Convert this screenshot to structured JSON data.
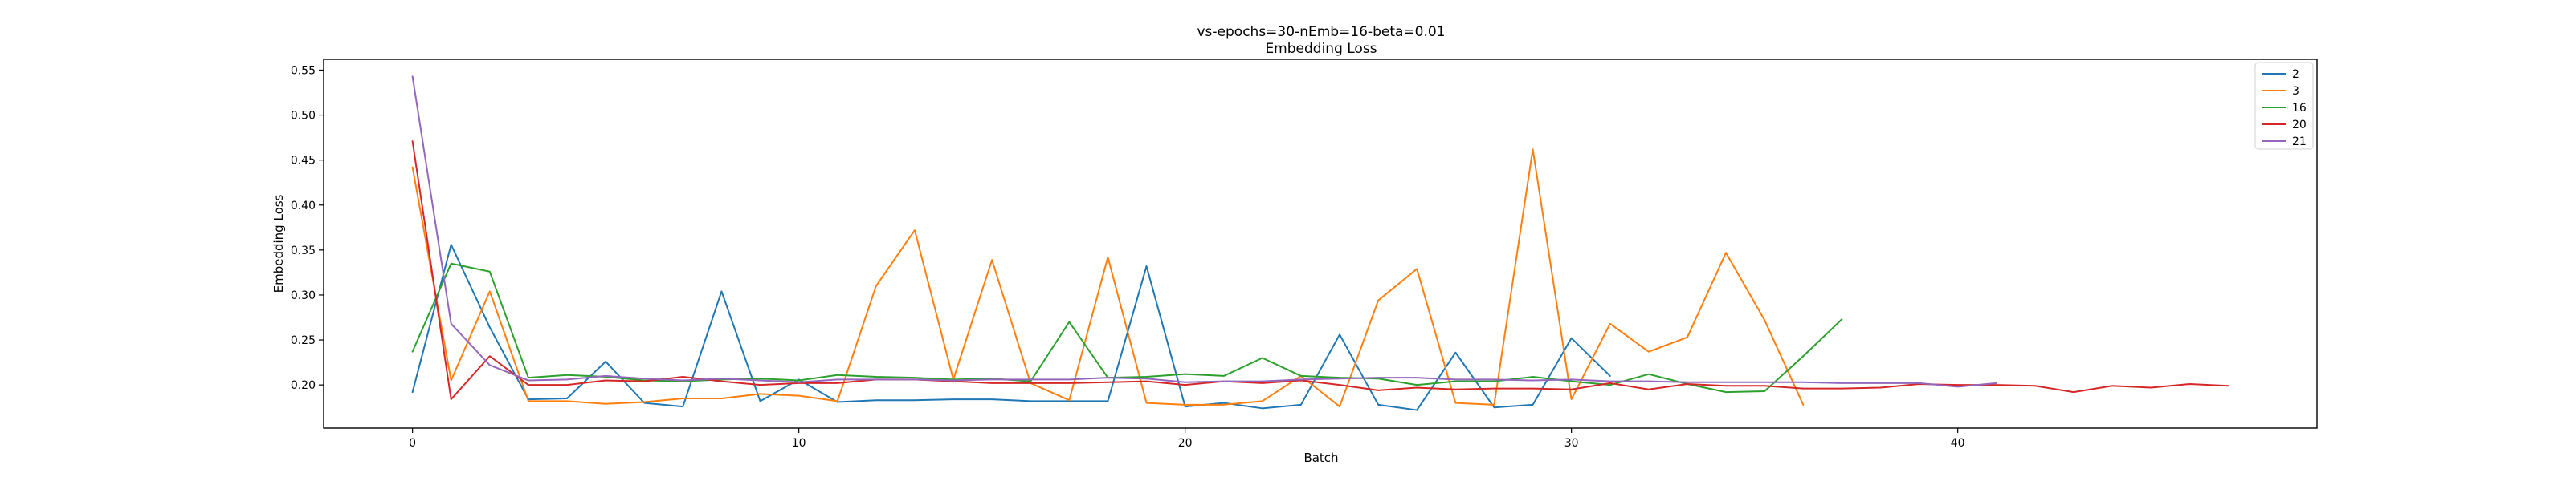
{
  "chart_data": {
    "type": "line",
    "title": "vs-epochs=30-nEmb=16-beta=0.01",
    "subtitle": "Embedding Loss",
    "xlabel": "Batch",
    "ylabel": "Embedding Loss",
    "xlim": [
      -2.3,
      49.3
    ],
    "ylim": [
      0.152,
      0.562
    ],
    "xticks": [
      0,
      10,
      20,
      30,
      40
    ],
    "yticks": [
      0.2,
      0.25,
      0.3,
      0.35,
      0.4,
      0.45,
      0.5,
      0.55
    ],
    "ytick_labels": [
      "0.20",
      "0.25",
      "0.30",
      "0.35",
      "0.40",
      "0.45",
      "0.50",
      "0.55"
    ],
    "grid": false,
    "legend_position": "top-right",
    "series": [
      {
        "name": "2",
        "color": "#1f77b4",
        "values": [
          0.192,
          0.356,
          0.264,
          0.184,
          0.185,
          0.226,
          0.18,
          0.176,
          0.304,
          0.182,
          0.206,
          0.181,
          0.183,
          0.183,
          0.184,
          0.184,
          0.182,
          0.182,
          0.182,
          0.332,
          0.176,
          0.18,
          0.174,
          0.178,
          0.256,
          0.178,
          0.172,
          0.236,
          0.175,
          0.178,
          0.252,
          0.21
        ]
      },
      {
        "name": "3",
        "color": "#ff7f0e",
        "values": [
          0.442,
          0.205,
          0.304,
          0.182,
          0.182,
          0.179,
          0.181,
          0.185,
          0.185,
          0.19,
          0.188,
          0.182,
          0.31,
          0.372,
          0.206,
          0.339,
          0.202,
          0.183,
          0.342,
          0.18,
          0.178,
          0.178,
          0.182,
          0.21,
          0.176,
          0.294,
          0.329,
          0.18,
          0.178,
          0.462,
          0.184,
          0.268,
          0.237,
          0.253,
          0.347,
          0.272,
          0.178
        ]
      },
      {
        "name": "16",
        "color": "#2ca02c",
        "values": [
          0.237,
          0.335,
          0.326,
          0.208,
          0.211,
          0.209,
          0.205,
          0.204,
          0.206,
          0.207,
          0.205,
          0.211,
          0.209,
          0.208,
          0.206,
          0.207,
          0.204,
          0.27,
          0.208,
          0.209,
          0.212,
          0.21,
          0.23,
          0.21,
          0.208,
          0.207,
          0.2,
          0.204,
          0.204,
          0.209,
          0.204,
          0.2,
          0.212,
          0.201,
          0.192,
          0.193,
          0.232,
          0.273
        ]
      },
      {
        "name": "20",
        "color": "#d62728",
        "values": [
          0.471,
          0.184,
          0.232,
          0.2,
          0.2,
          0.205,
          0.204,
          0.209,
          0.204,
          0.2,
          0.202,
          0.202,
          0.206,
          0.206,
          0.204,
          0.202,
          0.202,
          0.202,
          0.203,
          0.204,
          0.2,
          0.204,
          0.202,
          0.205,
          0.2,
          0.194,
          0.197,
          0.195,
          0.196,
          0.196,
          0.195,
          0.202,
          0.195,
          0.201,
          0.199,
          0.199,
          0.196,
          0.196,
          0.197,
          0.201,
          0.2,
          0.2,
          0.199,
          0.192,
          0.199,
          0.197,
          0.201,
          0.199
        ]
      },
      {
        "name": "21",
        "color": "#9467bd",
        "values": [
          0.543,
          0.268,
          0.222,
          0.205,
          0.206,
          0.21,
          0.207,
          0.205,
          0.207,
          0.205,
          0.203,
          0.206,
          0.206,
          0.206,
          0.205,
          0.206,
          0.206,
          0.206,
          0.208,
          0.207,
          0.203,
          0.204,
          0.204,
          0.206,
          0.207,
          0.208,
          0.208,
          0.206,
          0.206,
          0.205,
          0.206,
          0.204,
          0.204,
          0.203,
          0.203,
          0.203,
          0.203,
          0.202,
          0.202,
          0.202,
          0.198,
          0.202
        ]
      }
    ]
  }
}
